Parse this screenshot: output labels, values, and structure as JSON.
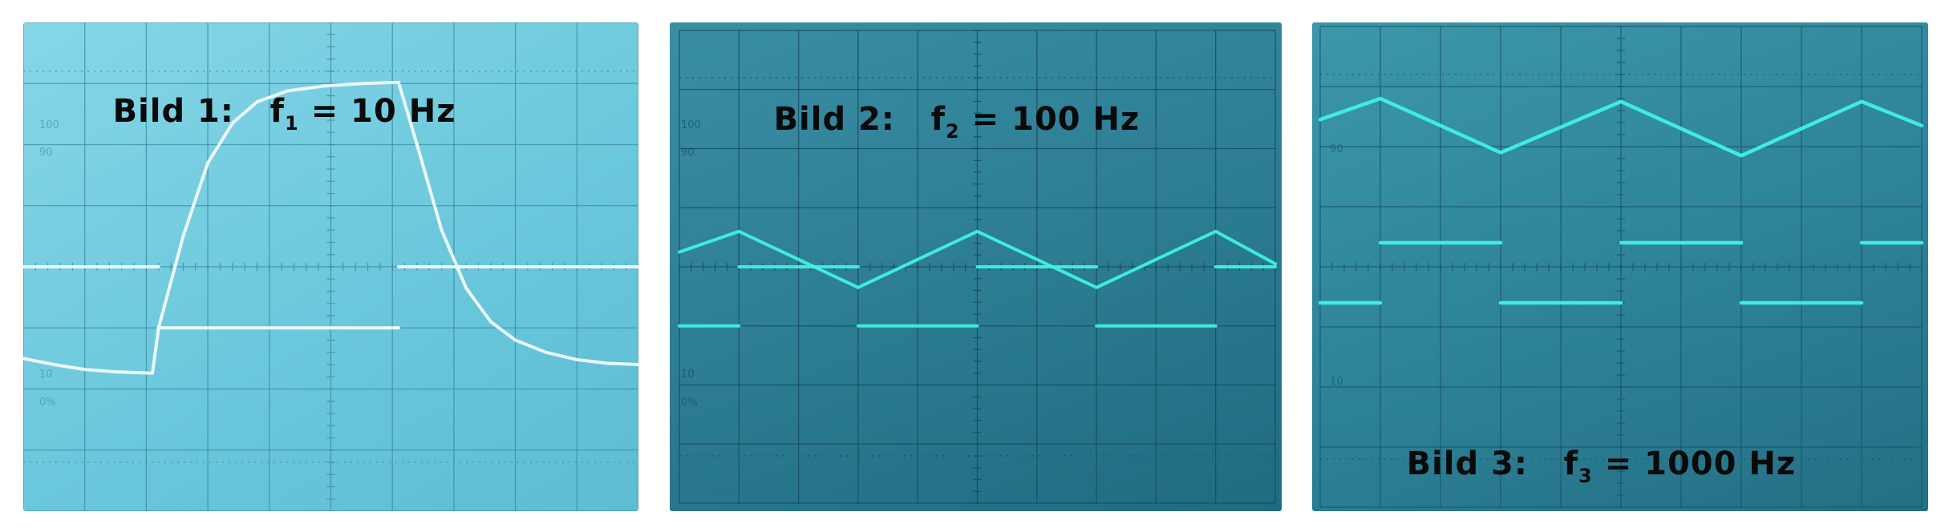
{
  "screens": [
    {
      "caption": {
        "bild": "Bild 1:",
        "f": "f",
        "sub": "1",
        "value": "= 10 Hz"
      },
      "scale_labels": [
        "100",
        "90",
        "10",
        "0%"
      ],
      "colors": {
        "trace": "#f2fbff",
        "grid": "#3f8aa0",
        "label": "#0a0a0a"
      }
    },
    {
      "caption": {
        "bild": "Bild 2:",
        "f": "f",
        "sub": "2",
        "value": "= 100 Hz"
      },
      "scale_labels": [
        "100",
        "90",
        "10",
        "0%"
      ],
      "colors": {
        "trace": "#3ff2e0",
        "grid": "#14485a",
        "label": "#0a0a0a"
      }
    },
    {
      "caption": {
        "bild": "Bild 3:",
        "f": "f",
        "sub": "3",
        "value": "= 1000 Hz"
      },
      "scale_labels": [
        "90",
        "10"
      ],
      "colors": {
        "trace": "#3ff2e0",
        "grid": "#17526a",
        "label": "#0a0a0a"
      }
    }
  ],
  "chart_data": [
    {
      "type": "line",
      "title": "Bild 1: f1 = 10 Hz",
      "grid": true,
      "x_divisions": 10,
      "y_divisions": 8,
      "ylim": [
        -4,
        4
      ],
      "series": [
        {
          "x": [
            0,
            2.2
          ],
          "y": [
            0,
            0
          ]
        },
        {
          "x": [
            2.2,
            6.1
          ],
          "y": [
            -1,
            -1
          ]
        },
        {
          "x": [
            6.1,
            10
          ],
          "y": [
            0,
            0
          ]
        },
        {
          "x": [
            0,
            0.5,
            1,
            1.5,
            2.1,
            2.2,
            2.6,
            3,
            3.4,
            3.8,
            4.3,
            4.9,
            5.5,
            6.1,
            6.4,
            6.8,
            7.2,
            7.6,
            8,
            8.5,
            9,
            9.5,
            10
          ],
          "y": [
            -1.5,
            -1.6,
            -1.68,
            -1.72,
            -1.74,
            -1.0,
            0.5,
            1.7,
            2.35,
            2.7,
            2.88,
            2.96,
            3.0,
            3.02,
            2.0,
            0.6,
            -0.35,
            -0.9,
            -1.2,
            -1.4,
            -1.52,
            -1.58,
            -1.6
          ]
        }
      ]
    },
    {
      "type": "line",
      "title": "Bild 2: f2 = 100 Hz",
      "grid": true,
      "x_divisions": 10,
      "y_divisions": 8,
      "ylim": [
        -4,
        4
      ],
      "series": [
        {
          "x": [
            0,
            1
          ],
          "y": [
            -1,
            -1
          ]
        },
        {
          "x": [
            1,
            3
          ],
          "y": [
            0,
            0
          ]
        },
        {
          "x": [
            3,
            5
          ],
          "y": [
            -1,
            -1
          ]
        },
        {
          "x": [
            5,
            7
          ],
          "y": [
            0,
            0
          ]
        },
        {
          "x": [
            7,
            9
          ],
          "y": [
            -1,
            -1
          ]
        },
        {
          "x": [
            9,
            10
          ],
          "y": [
            0,
            0
          ]
        },
        {
          "x": [
            0,
            1,
            3,
            5,
            7,
            9,
            10
          ],
          "y": [
            0.25,
            0.6,
            -0.35,
            0.6,
            -0.35,
            0.6,
            0.05
          ]
        }
      ]
    },
    {
      "type": "line",
      "title": "Bild 3: f3 = 1000 Hz",
      "grid": true,
      "x_divisions": 10,
      "y_divisions": 8,
      "ylim": [
        -4,
        4
      ],
      "series": [
        {
          "x": [
            0,
            1
          ],
          "y": [
            -0.6,
            -0.6
          ]
        },
        {
          "x": [
            1,
            3
          ],
          "y": [
            0.4,
            0.4
          ]
        },
        {
          "x": [
            3,
            5
          ],
          "y": [
            -0.6,
            -0.6
          ]
        },
        {
          "x": [
            5,
            7
          ],
          "y": [
            0.4,
            0.4
          ]
        },
        {
          "x": [
            7,
            9
          ],
          "y": [
            -0.6,
            -0.6
          ]
        },
        {
          "x": [
            9,
            10
          ],
          "y": [
            0.4,
            0.4
          ]
        },
        {
          "x": [
            0,
            1,
            3,
            5,
            7,
            9,
            10
          ],
          "y": [
            2.45,
            2.8,
            1.9,
            2.75,
            1.85,
            2.75,
            2.35
          ]
        }
      ]
    }
  ]
}
